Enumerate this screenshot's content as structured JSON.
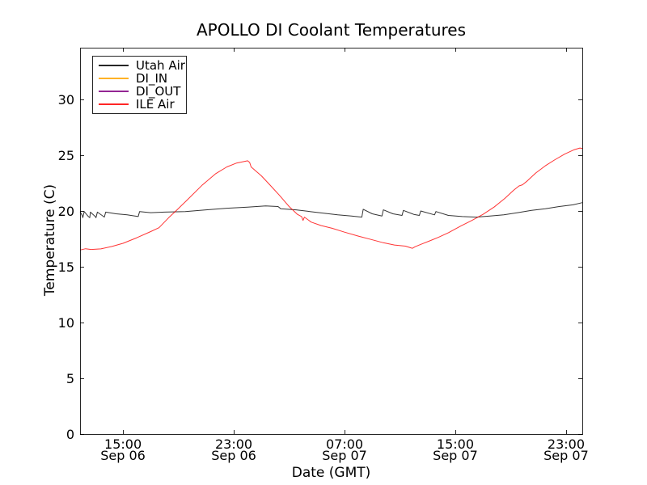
{
  "figure": {
    "title": "APOLLO DI Coolant Temperatures",
    "xlabel": "Date (GMT)",
    "ylabel": "Temperature (C)"
  },
  "legend": {
    "position": "upper left",
    "entries": [
      {
        "label": "Utah Air",
        "color": "#000000"
      },
      {
        "label": "DI_IN",
        "color": "#ffa500"
      },
      {
        "label": "DI_OUT",
        "color": "#800080"
      },
      {
        "label": "ILE Air",
        "color": "#ff0000"
      }
    ]
  },
  "chart_data": {
    "type": "line",
    "title": "APOLLO DI Coolant Temperatures",
    "xlabel": "Date (GMT)",
    "ylabel": "Temperature (C)",
    "x_unit": "hours since Sep 06 00:00 GMT",
    "xlim": [
      11.9,
      48.17
    ],
    "ylim": [
      0,
      34.64
    ],
    "grid": false,
    "background": "#ffffff",
    "axis_color": "#000000",
    "y_ticks": [
      0,
      5,
      10,
      15,
      20,
      25,
      30
    ],
    "x_ticks": [
      {
        "value": 15,
        "time": "15:00",
        "date": "Sep 06"
      },
      {
        "value": 23,
        "time": "23:00",
        "date": "Sep 06"
      },
      {
        "value": 31,
        "time": "07:00",
        "date": "Sep 07"
      },
      {
        "value": 39,
        "time": "15:00",
        "date": "Sep 07"
      },
      {
        "value": 47,
        "time": "23:00",
        "date": "Sep 07"
      }
    ],
    "series": [
      {
        "name": "Utah Air",
        "color": "#000000",
        "points": [
          [
            11.9,
            19.95
          ],
          [
            12.05,
            19.6
          ],
          [
            12.1,
            19.4
          ],
          [
            12.2,
            19.95
          ],
          [
            12.5,
            19.5
          ],
          [
            12.6,
            19.4
          ],
          [
            12.65,
            19.9
          ],
          [
            13.0,
            19.5
          ],
          [
            13.05,
            19.4
          ],
          [
            13.15,
            19.9
          ],
          [
            13.6,
            19.5
          ],
          [
            13.65,
            19.45
          ],
          [
            13.75,
            19.9
          ],
          [
            14.5,
            19.75
          ],
          [
            15.3,
            19.65
          ],
          [
            16.1,
            19.5
          ],
          [
            16.2,
            19.95
          ],
          [
            17.0,
            19.85
          ],
          [
            18.0,
            19.9
          ],
          [
            19.5,
            19.95
          ],
          [
            21.0,
            20.1
          ],
          [
            22.5,
            20.25
          ],
          [
            24.0,
            20.35
          ],
          [
            25.3,
            20.45
          ],
          [
            26.2,
            20.4
          ],
          [
            26.4,
            20.2
          ],
          [
            27.5,
            20.1
          ],
          [
            28.5,
            19.95
          ],
          [
            29.5,
            19.8
          ],
          [
            30.5,
            19.65
          ],
          [
            31.5,
            19.55
          ],
          [
            32.25,
            19.45
          ],
          [
            32.35,
            20.15
          ],
          [
            33.0,
            19.75
          ],
          [
            33.7,
            19.55
          ],
          [
            33.8,
            20.1
          ],
          [
            34.5,
            19.75
          ],
          [
            35.15,
            19.6
          ],
          [
            35.25,
            20.05
          ],
          [
            36.0,
            19.7
          ],
          [
            36.4,
            19.6
          ],
          [
            36.5,
            20.0
          ],
          [
            37.5,
            19.65
          ],
          [
            37.6,
            19.95
          ],
          [
            38.5,
            19.6
          ],
          [
            39.5,
            19.5
          ],
          [
            40.5,
            19.45
          ],
          [
            41.5,
            19.55
          ],
          [
            42.5,
            19.65
          ],
          [
            43.5,
            19.85
          ],
          [
            44.5,
            20.05
          ],
          [
            45.5,
            20.2
          ],
          [
            46.5,
            20.4
          ],
          [
            47.5,
            20.55
          ],
          [
            48.17,
            20.75
          ]
        ]
      },
      {
        "name": "DI_IN",
        "color": "#ffa500",
        "points": []
      },
      {
        "name": "DI_OUT",
        "color": "#800080",
        "points": []
      },
      {
        "name": "ILE Air",
        "color": "#ff0000",
        "points": [
          [
            11.9,
            16.5
          ],
          [
            12.3,
            16.62
          ],
          [
            12.7,
            16.55
          ],
          [
            13.4,
            16.6
          ],
          [
            14.2,
            16.82
          ],
          [
            15.0,
            17.1
          ],
          [
            16.0,
            17.6
          ],
          [
            17.0,
            18.15
          ],
          [
            17.6,
            18.5
          ],
          [
            18.3,
            19.4
          ],
          [
            18.9,
            20.1
          ],
          [
            19.56,
            20.9
          ],
          [
            20.7,
            22.3
          ],
          [
            21.7,
            23.35
          ],
          [
            22.5,
            23.95
          ],
          [
            23.2,
            24.3
          ],
          [
            24.0,
            24.5
          ],
          [
            24.15,
            24.35
          ],
          [
            24.25,
            23.95
          ],
          [
            25.0,
            23.15
          ],
          [
            25.6,
            22.35
          ],
          [
            26.3,
            21.4
          ],
          [
            27.0,
            20.4
          ],
          [
            27.6,
            19.7
          ],
          [
            27.9,
            19.5
          ],
          [
            28.0,
            19.15
          ],
          [
            28.1,
            19.45
          ],
          [
            28.6,
            19.0
          ],
          [
            29.3,
            18.7
          ],
          [
            30.1,
            18.45
          ],
          [
            31.0,
            18.1
          ],
          [
            32.0,
            17.75
          ],
          [
            32.9,
            17.45
          ],
          [
            33.8,
            17.15
          ],
          [
            34.6,
            16.95
          ],
          [
            35.4,
            16.85
          ],
          [
            35.9,
            16.65
          ],
          [
            36.1,
            16.8
          ],
          [
            36.6,
            17.05
          ],
          [
            37.2,
            17.35
          ],
          [
            37.8,
            17.65
          ],
          [
            38.5,
            18.05
          ],
          [
            39.4,
            18.65
          ],
          [
            40.2,
            19.15
          ],
          [
            41.0,
            19.7
          ],
          [
            41.8,
            20.35
          ],
          [
            42.6,
            21.15
          ],
          [
            43.2,
            21.85
          ],
          [
            43.6,
            22.25
          ],
          [
            43.85,
            22.35
          ],
          [
            44.2,
            22.7
          ],
          [
            44.8,
            23.4
          ],
          [
            45.5,
            24.05
          ],
          [
            46.2,
            24.6
          ],
          [
            46.9,
            25.1
          ],
          [
            47.6,
            25.5
          ],
          [
            48.0,
            25.65
          ],
          [
            48.17,
            25.6
          ]
        ]
      }
    ]
  }
}
